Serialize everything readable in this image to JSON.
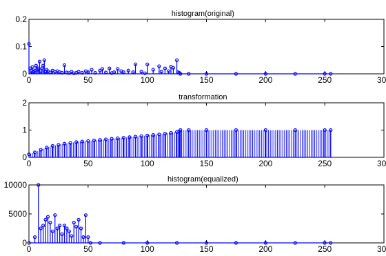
{
  "figure": {
    "background": "#ffffff",
    "stem_color": "#0000ff"
  },
  "chart_data": [
    {
      "type": "stem",
      "title": "histogram(original)",
      "xlim": [
        0,
        300
      ],
      "ylim": [
        0,
        0.2
      ],
      "xticks": [
        0,
        50,
        100,
        150,
        200,
        250,
        300
      ],
      "xtick_labels": [
        "0",
        "50",
        "100",
        "150",
        "200",
        "250",
        "300"
      ],
      "yticks": [
        0,
        0.1,
        0.2
      ],
      "ytick_labels": [
        "0",
        "0.1",
        "0.2"
      ],
      "x": [
        0,
        1,
        2,
        3,
        4,
        5,
        6,
        7,
        8,
        9,
        10,
        11,
        12,
        13,
        14,
        15,
        16,
        18,
        20,
        22,
        24,
        26,
        28,
        30,
        32,
        34,
        36,
        38,
        40,
        42,
        45,
        48,
        50,
        53,
        56,
        60,
        62,
        65,
        68,
        70,
        72,
        75,
        78,
        80,
        84,
        88,
        90,
        95,
        98,
        100,
        105,
        110,
        112,
        115,
        118,
        120,
        122,
        125,
        126,
        127,
        128,
        135,
        150,
        175,
        200,
        225,
        250,
        255
      ],
      "y": [
        0.11,
        0.02,
        0.01,
        0.025,
        0.008,
        0.012,
        0.03,
        0.015,
        0.02,
        0.045,
        0.01,
        0.02,
        0.03,
        0.05,
        0.008,
        0.015,
        0.01,
        0.005,
        0.012,
        0.008,
        0.01,
        0.006,
        0.004,
        0.032,
        0.005,
        0.003,
        0.008,
        0.002,
        0.004,
        0.008,
        0.004,
        0.01,
        0.006,
        0.015,
        0.004,
        0.012,
        0.018,
        0.005,
        0.02,
        0.003,
        0.006,
        0.018,
        0.01,
        0.006,
        0.012,
        0.006,
        0.035,
        0.008,
        0.002,
        0.035,
        0.015,
        0.028,
        0.008,
        0.02,
        0.01,
        0.026,
        0.022,
        0.05,
        0.006,
        0.004,
        0,
        0,
        0,
        0,
        0,
        0,
        0,
        0
      ]
    },
    {
      "type": "stem",
      "title": "transformation",
      "xlim": [
        0,
        300
      ],
      "ylim": [
        0,
        2
      ],
      "xticks": [
        0,
        50,
        100,
        150,
        200,
        250,
        300
      ],
      "xtick_labels": [
        "0",
        "50",
        "100",
        "150",
        "200",
        "250",
        "300"
      ],
      "yticks": [
        0,
        1,
        2
      ],
      "ytick_labels": [
        "0",
        "1",
        "2"
      ],
      "x": [
        0,
        5,
        10,
        15,
        20,
        25,
        30,
        35,
        40,
        45,
        50,
        55,
        60,
        65,
        70,
        75,
        80,
        85,
        90,
        95,
        100,
        105,
        110,
        115,
        120,
        125,
        127,
        128,
        135,
        150,
        175,
        200,
        225,
        250,
        255
      ],
      "y": [
        0.11,
        0.18,
        0.28,
        0.36,
        0.42,
        0.46,
        0.5,
        0.53,
        0.56,
        0.58,
        0.6,
        0.62,
        0.64,
        0.66,
        0.68,
        0.7,
        0.72,
        0.74,
        0.76,
        0.78,
        0.8,
        0.82,
        0.84,
        0.87,
        0.9,
        0.93,
        0.95,
        1.0,
        1.0,
        1.0,
        1.0,
        1.0,
        1.0,
        1.0,
        1.0
      ]
    },
    {
      "type": "stem",
      "title": "histogram(equalized)",
      "xlim": [
        0,
        300
      ],
      "ylim": [
        0,
        10000
      ],
      "xticks": [
        0,
        50,
        100,
        150,
        200,
        250,
        300
      ],
      "xtick_labels": [
        "0",
        "50",
        "100",
        "150",
        "200",
        "250",
        "300"
      ],
      "yticks": [
        0,
        5000,
        10000
      ],
      "ytick_labels": [
        "0",
        "5000",
        "10000"
      ],
      "x": [
        0,
        5,
        8,
        10,
        12,
        14,
        16,
        18,
        20,
        22,
        24,
        26,
        28,
        30,
        32,
        34,
        36,
        38,
        40,
        42,
        44,
        46,
        48,
        50,
        52,
        60,
        80,
        100,
        125,
        150,
        175,
        200,
        225,
        250,
        255
      ],
      "y": [
        0,
        1000,
        10000,
        2500,
        3000,
        4000,
        4500,
        3500,
        2000,
        4800,
        2500,
        3000,
        1500,
        3000,
        2500,
        2000,
        1200,
        3500,
        2800,
        4000,
        2500,
        1000,
        4800,
        1000,
        0,
        0,
        0,
        0,
        0,
        0,
        0,
        0,
        0,
        0,
        0
      ]
    }
  ]
}
